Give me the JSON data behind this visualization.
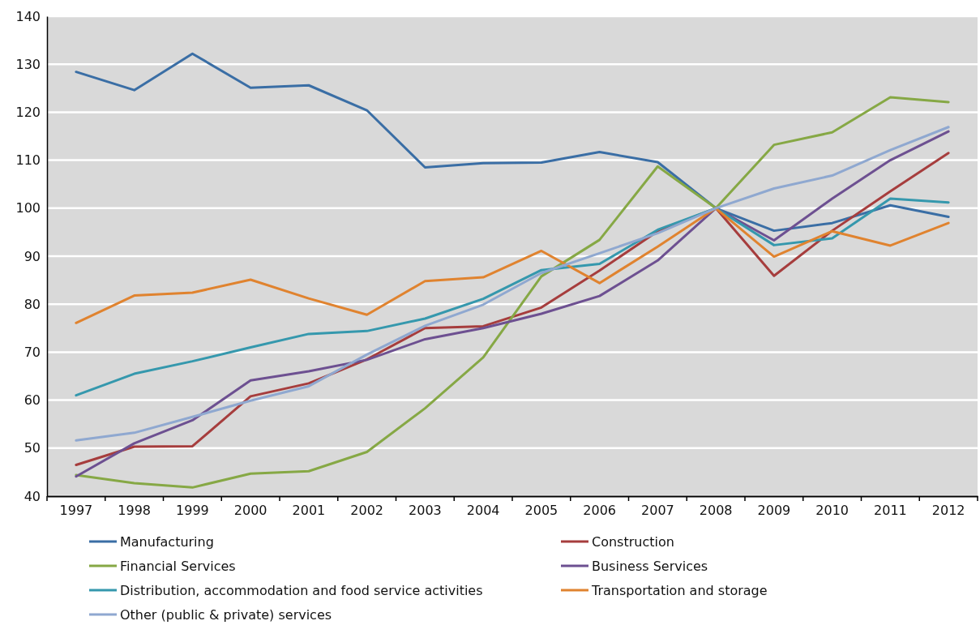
{
  "chart_data": {
    "type": "line",
    "categories": [
      "1997",
      "1998",
      "1999",
      "2000",
      "2001",
      "2002",
      "2003",
      "2004",
      "2005",
      "2006",
      "2007",
      "2008",
      "2009",
      "2010",
      "2011",
      "2012"
    ],
    "ylim": [
      40,
      140
    ],
    "yticks": [
      40,
      50,
      60,
      70,
      80,
      90,
      100,
      110,
      120,
      130,
      140
    ],
    "grid": "y",
    "legend": "bottom",
    "marker": "none",
    "line_style": "solid",
    "series": [
      {
        "name": "Manufacturing",
        "color": "#3a6ea5",
        "values": [
          128.4,
          124.6,
          132.2,
          125.1,
          125.6,
          120.4,
          108.5,
          109.4,
          109.5,
          111.7,
          109.6,
          100,
          95.3,
          96.9,
          100.6,
          98.2
        ]
      },
      {
        "name": "Construction",
        "color": "#a63d3d",
        "values": [
          46.5,
          50.3,
          50.4,
          60.8,
          63.5,
          68.5,
          75,
          75.4,
          79.3,
          87,
          95.2,
          100,
          85.9,
          95.3,
          103.5,
          111.5
        ]
      },
      {
        "name": "Financial Services",
        "color": "#86a845",
        "values": [
          44.4,
          42.7,
          41.8,
          44.7,
          45.2,
          49.2,
          58.3,
          68.9,
          85.8,
          93.4,
          108.7,
          100,
          113.2,
          115.8,
          123.1,
          122.1
        ]
      },
      {
        "name": "Business Services",
        "color": "#6d5091",
        "values": [
          44.1,
          51,
          55.8,
          64.1,
          66,
          68.4,
          72.7,
          75,
          78,
          81.7,
          89.1,
          100,
          93.3,
          102,
          110,
          116
        ]
      },
      {
        "name": "Distribution, accommodation and food service activities",
        "color": "#3598ad",
        "values": [
          61,
          65.5,
          68.1,
          71,
          73.8,
          74.4,
          77,
          81.1,
          87.1,
          88.4,
          95.5,
          100,
          92.3,
          93.7,
          102,
          101.2
        ]
      },
      {
        "name": "Transportation and storage",
        "color": "#e0832f",
        "values": [
          76.1,
          81.8,
          82.4,
          85.1,
          81.2,
          77.8,
          84.8,
          85.6,
          91.1,
          84.4,
          92,
          100,
          89.9,
          95.2,
          92.2,
          96.9
        ]
      },
      {
        "name": "Other (public & private) services",
        "color": "#8fa8d0",
        "values": [
          51.6,
          53.2,
          56.5,
          59.9,
          62.9,
          69.5,
          75.5,
          79.9,
          86.5,
          90.6,
          94.8,
          100,
          104.1,
          106.8,
          112.1,
          116.9
        ]
      }
    ]
  }
}
